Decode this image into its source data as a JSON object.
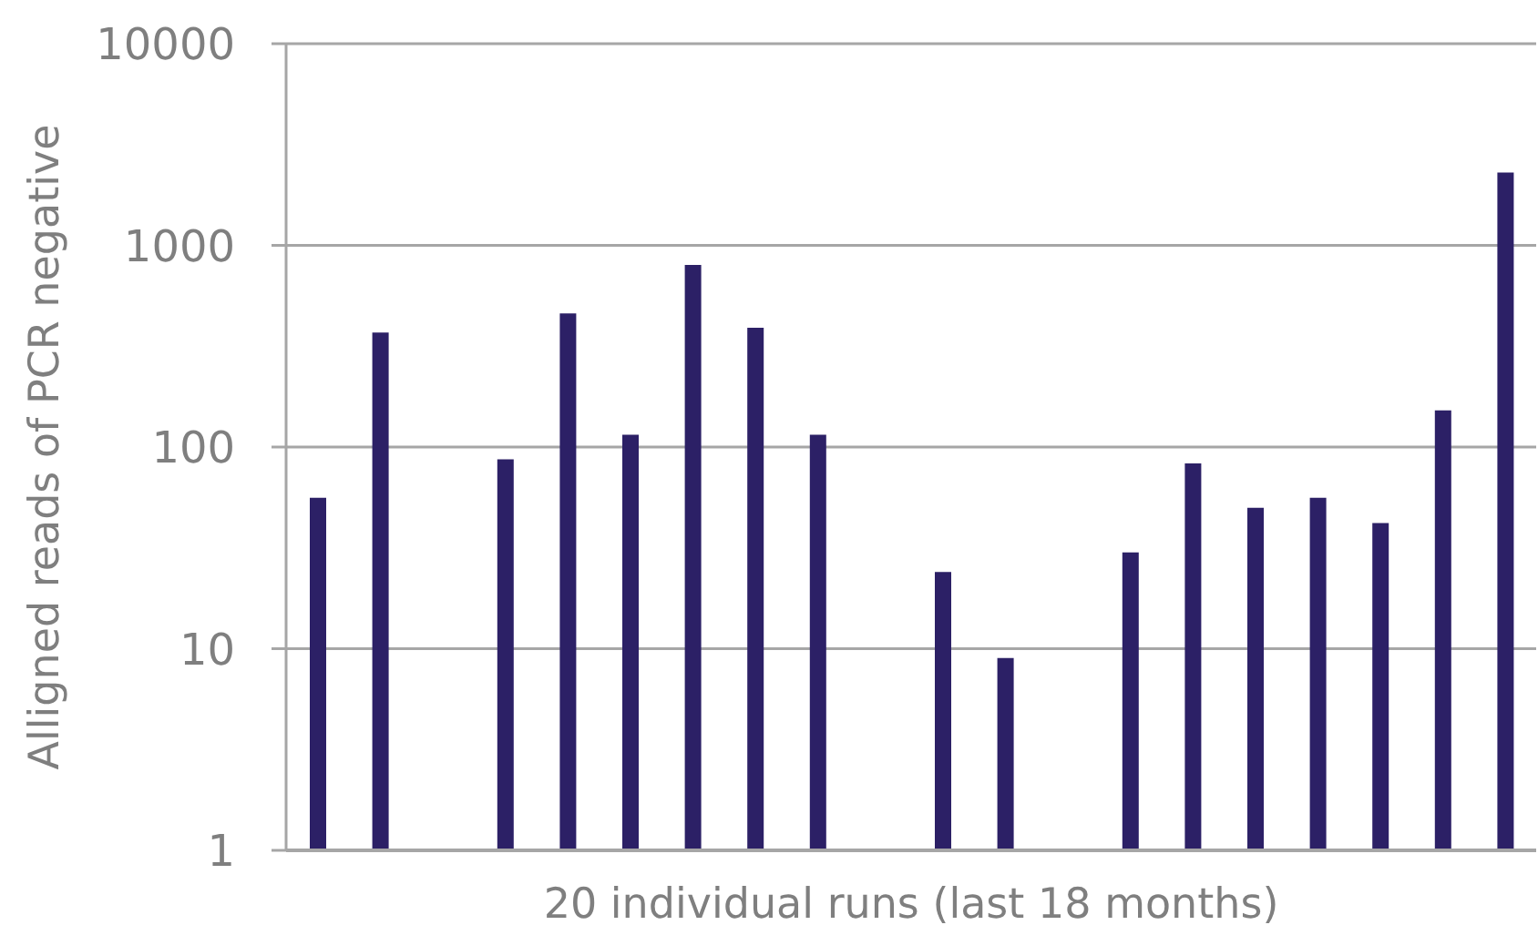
{
  "chart_data": {
    "type": "bar",
    "xlabel": "20 individual runs (last 18 months)",
    "ylabel": "Alligned reads of PCR negative",
    "categories": [
      null,
      null,
      null,
      null,
      null,
      null,
      null,
      null,
      null,
      null,
      null,
      null,
      null,
      null,
      null,
      null,
      null,
      null,
      null,
      null
    ],
    "values": [
      56,
      370,
      null,
      87,
      460,
      115,
      800,
      390,
      115,
      null,
      24,
      9,
      null,
      30,
      83,
      50,
      56,
      42,
      152,
      2300
    ],
    "color": "#2c2066",
    "ylim": [
      1,
      10000
    ],
    "yticks": [
      1,
      10,
      100,
      1000,
      10000
    ],
    "log": true,
    "grid": "y",
    "tick_labels": "y"
  }
}
